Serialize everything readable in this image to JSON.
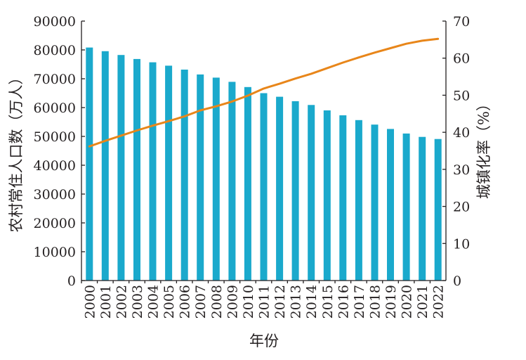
{
  "chart_data": {
    "type": "bar",
    "xlabel": "年份",
    "categories": [
      "2000",
      "2001",
      "2002",
      "2003",
      "2004",
      "2005",
      "2006",
      "2007",
      "2008",
      "2009",
      "2010",
      "2011",
      "2012",
      "2013",
      "2014",
      "2015",
      "2016",
      "2017",
      "2018",
      "2019",
      "2020",
      "2021",
      "2022"
    ],
    "series": [
      {
        "name": "农村常住人口数（万人）",
        "type": "bar",
        "axis": "left",
        "color": "#1aa9cc",
        "values": [
          80837,
          79563,
          78241,
          76851,
          75705,
          74544,
          73160,
          71496,
          70399,
          68938,
          67113,
          64989,
          63747,
          62224,
          60908,
          59024,
          57308,
          55668,
          54108,
          52582,
          50992,
          49835,
          49104
        ]
      },
      {
        "name": "城镇化率（%）",
        "type": "line",
        "axis": "right",
        "color": "#e8861a",
        "values": [
          36.2,
          37.7,
          39.1,
          40.5,
          41.8,
          43.0,
          44.3,
          45.9,
          47.0,
          48.3,
          49.9,
          51.8,
          53.1,
          54.5,
          55.8,
          57.3,
          58.8,
          60.2,
          61.5,
          62.7,
          63.9,
          64.7,
          65.2
        ]
      }
    ],
    "y_left": {
      "label": "农村常住人口数（万人）",
      "ylim": [
        0,
        90000
      ],
      "ticks": [
        "0",
        "10000",
        "20000",
        "30000",
        "40000",
        "50000",
        "60000",
        "70000",
        "80000",
        "90000"
      ]
    },
    "y_right": {
      "label": "城镇化率（%）",
      "ylim": [
        0,
        70
      ],
      "ticks": [
        "0",
        "10",
        "20",
        "30",
        "40",
        "50",
        "60",
        "70"
      ]
    },
    "grid": false
  }
}
